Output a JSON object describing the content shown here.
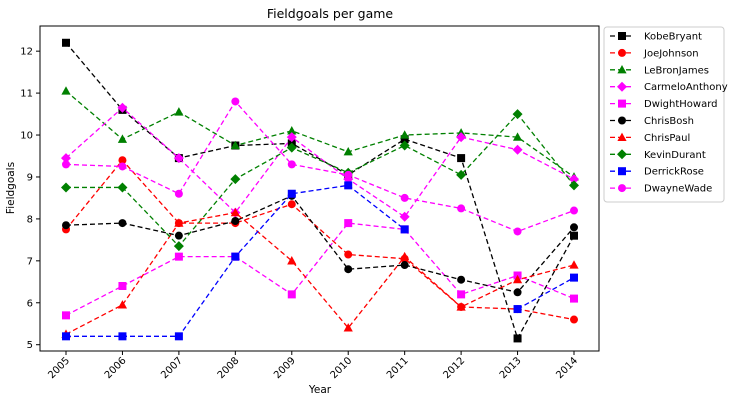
{
  "chart_data": {
    "type": "line",
    "title": "Fieldgoals per game",
    "xlabel": "Year",
    "ylabel": "Fieldgoals",
    "x": [
      "2005",
      "2006",
      "2007",
      "2008",
      "2009",
      "2010",
      "2011",
      "2012",
      "2013",
      "2014"
    ],
    "xlim": [
      2005,
      2014
    ],
    "ylim": [
      4.85,
      12.6
    ],
    "yticks": [
      5,
      6,
      7,
      8,
      9,
      10,
      11,
      12
    ],
    "grid": false,
    "legend_position": "outside-right",
    "series": [
      {
        "name": "KobeBryant",
        "color": "#000000",
        "marker": "square",
        "values": [
          12.2,
          10.6,
          9.45,
          9.75,
          9.8,
          9.05,
          9.9,
          9.45,
          5.15,
          7.6
        ]
      },
      {
        "name": "JoeJohnson",
        "color": "#ff0000",
        "marker": "circle",
        "values": [
          7.75,
          9.4,
          7.9,
          7.9,
          8.35,
          7.15,
          7.05,
          5.9,
          5.85,
          5.6
        ]
      },
      {
        "name": "LeBronJames",
        "color": "#008000",
        "marker": "triangle",
        "values": [
          11.05,
          9.9,
          10.55,
          9.75,
          10.1,
          9.6,
          10.0,
          10.05,
          9.95,
          9.0
        ]
      },
      {
        "name": "CarmeloAnthony",
        "color": "#ff00ff",
        "marker": "diamond",
        "values": [
          9.45,
          10.65,
          9.45,
          8.15,
          9.95,
          8.95,
          8.05,
          9.95,
          9.65,
          8.95
        ]
      },
      {
        "name": "DwightHoward",
        "color": "#ff00ff",
        "marker": "square",
        "values": [
          5.7,
          6.4,
          7.1,
          7.1,
          6.2,
          7.9,
          7.75,
          6.2,
          6.65,
          6.1
        ]
      },
      {
        "name": "ChrisBosh",
        "color": "#000000",
        "marker": "circle",
        "values": [
          7.85,
          7.9,
          7.6,
          7.95,
          8.55,
          6.8,
          6.9,
          6.55,
          6.25,
          7.8
        ]
      },
      {
        "name": "ChrisPaul",
        "color": "#ff0000",
        "marker": "triangle",
        "values": [
          5.25,
          5.95,
          7.9,
          8.15,
          7.0,
          5.4,
          7.1,
          5.9,
          6.55,
          6.9
        ]
      },
      {
        "name": "KevinDurant",
        "color": "#008000",
        "marker": "diamond",
        "values": [
          8.75,
          8.75,
          7.35,
          8.95,
          9.7,
          9.1,
          9.75,
          9.05,
          10.5,
          8.8
        ]
      },
      {
        "name": "DerrickRose",
        "color": "#0000ff",
        "marker": "square",
        "values": [
          5.2,
          5.2,
          5.2,
          7.1,
          8.6,
          8.8,
          7.75,
          null,
          5.85,
          6.6
        ]
      },
      {
        "name": "DwayneWade",
        "color": "#ff00ff",
        "marker": "circle",
        "values": [
          9.3,
          9.25,
          8.6,
          10.8,
          9.3,
          9.05,
          8.5,
          8.25,
          7.7,
          8.2
        ]
      }
    ]
  }
}
